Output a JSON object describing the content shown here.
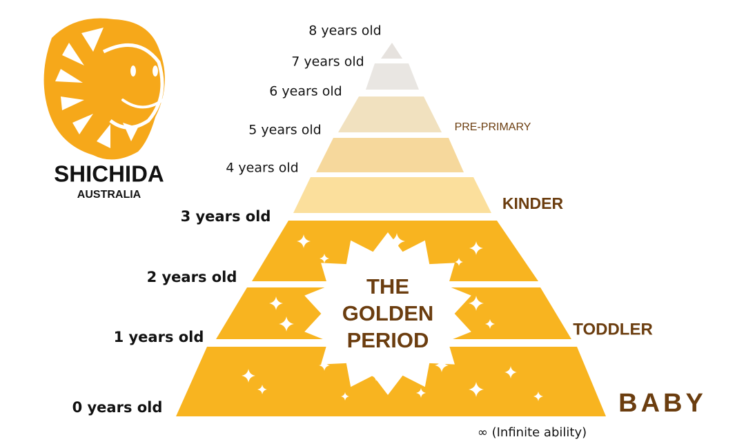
{
  "logo": {
    "name": "SHICHIDA",
    "subtitle": "AUSTRALIA"
  },
  "ages": [
    "8 years old",
    "7 years old",
    "6 years old",
    "5 years old",
    "4 years old",
    "3 years old",
    "2 years old",
    "1 years old",
    "0 years old"
  ],
  "stages": [
    "PRE-PRIMARY",
    "KINDER",
    "TODDLER",
    "BABY"
  ],
  "center_text": [
    "THE",
    "GOLDEN",
    "PERIOD"
  ],
  "footnote": "∞ (Infinite ability)"
}
